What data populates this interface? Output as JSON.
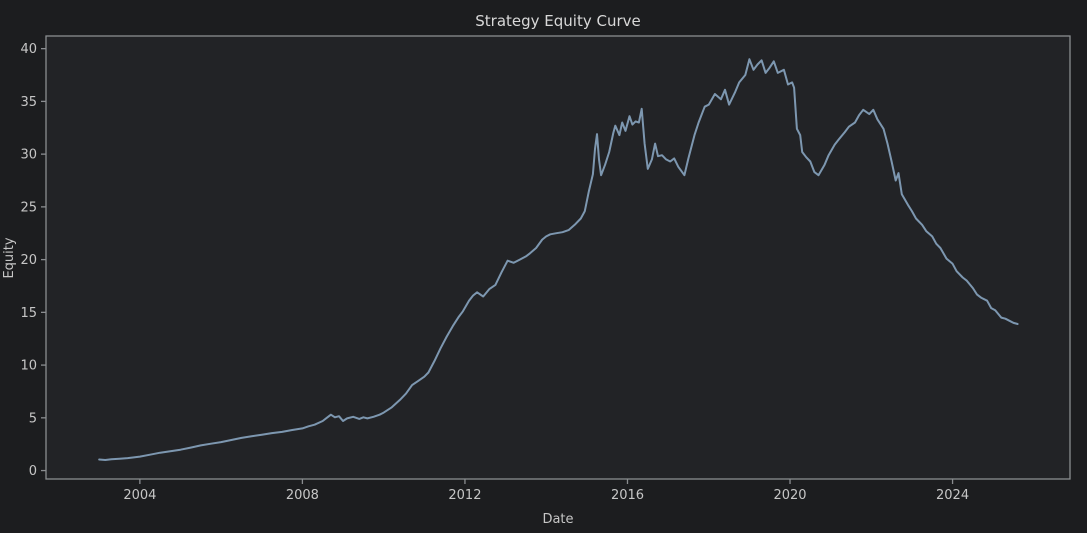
{
  "chart_data": {
    "type": "line",
    "title": "Strategy Equity Curve",
    "xlabel": "Date",
    "ylabel": "Equity",
    "grid": false,
    "legend_position": "none",
    "xlim": [
      2001.69,
      2026.89
    ],
    "ylim": [
      -0.8,
      41.2
    ],
    "x_ticks": [
      {
        "value": 2004,
        "label": "2004"
      },
      {
        "value": 2008,
        "label": "2008"
      },
      {
        "value": 2012,
        "label": "2012"
      },
      {
        "value": 2016,
        "label": "2016"
      },
      {
        "value": 2020,
        "label": "2020"
      },
      {
        "value": 2024,
        "label": "2024"
      }
    ],
    "y_ticks": [
      {
        "value": 0,
        "label": "0"
      },
      {
        "value": 5,
        "label": "5"
      },
      {
        "value": 10,
        "label": "10"
      },
      {
        "value": 15,
        "label": "15"
      },
      {
        "value": 20,
        "label": "20"
      },
      {
        "value": 25,
        "label": "25"
      },
      {
        "value": 30,
        "label": "30"
      },
      {
        "value": 35,
        "label": "35"
      },
      {
        "value": 40,
        "label": "40"
      }
    ],
    "colors": {
      "figure_background": "#1c1d1f",
      "axes_background": "#222326",
      "spine": "#8a8d90",
      "tick": "#8a8d90",
      "tick_label": "#c6c6c6",
      "title": "#d8d8d8",
      "line": "#7d97b0"
    },
    "series": [
      {
        "name": "equity",
        "color": "#7d97b0",
        "points": [
          [
            2003.0,
            1.05
          ],
          [
            2003.15,
            1.0
          ],
          [
            2003.3,
            1.08
          ],
          [
            2003.5,
            1.12
          ],
          [
            2003.7,
            1.18
          ],
          [
            2003.85,
            1.25
          ],
          [
            2004.0,
            1.32
          ],
          [
            2004.25,
            1.5
          ],
          [
            2004.5,
            1.69
          ],
          [
            2004.75,
            1.84
          ],
          [
            2005.0,
            1.98
          ],
          [
            2005.25,
            2.18
          ],
          [
            2005.5,
            2.39
          ],
          [
            2005.75,
            2.55
          ],
          [
            2006.0,
            2.7
          ],
          [
            2006.25,
            2.9
          ],
          [
            2006.5,
            3.1
          ],
          [
            2006.75,
            3.25
          ],
          [
            2007.0,
            3.4
          ],
          [
            2007.25,
            3.55
          ],
          [
            2007.5,
            3.67
          ],
          [
            2007.75,
            3.85
          ],
          [
            2008.0,
            4.0
          ],
          [
            2008.15,
            4.2
          ],
          [
            2008.3,
            4.35
          ],
          [
            2008.5,
            4.7
          ],
          [
            2008.6,
            5.0
          ],
          [
            2008.7,
            5.3
          ],
          [
            2008.8,
            5.05
          ],
          [
            2008.9,
            5.15
          ],
          [
            2009.0,
            4.7
          ],
          [
            2009.1,
            4.95
          ],
          [
            2009.25,
            5.1
          ],
          [
            2009.4,
            4.9
          ],
          [
            2009.5,
            5.05
          ],
          [
            2009.6,
            4.95
          ],
          [
            2009.75,
            5.1
          ],
          [
            2009.9,
            5.3
          ],
          [
            2010.0,
            5.5
          ],
          [
            2010.2,
            6.0
          ],
          [
            2010.4,
            6.7
          ],
          [
            2010.55,
            7.3
          ],
          [
            2010.7,
            8.1
          ],
          [
            2010.85,
            8.5
          ],
          [
            2011.0,
            8.9
          ],
          [
            2011.1,
            9.3
          ],
          [
            2011.25,
            10.4
          ],
          [
            2011.4,
            11.6
          ],
          [
            2011.55,
            12.7
          ],
          [
            2011.7,
            13.7
          ],
          [
            2011.85,
            14.6
          ],
          [
            2011.95,
            15.1
          ],
          [
            2012.1,
            16.1
          ],
          [
            2012.2,
            16.6
          ],
          [
            2012.3,
            16.9
          ],
          [
            2012.45,
            16.5
          ],
          [
            2012.6,
            17.2
          ],
          [
            2012.75,
            17.6
          ],
          [
            2012.9,
            18.8
          ],
          [
            2013.05,
            19.9
          ],
          [
            2013.2,
            19.7
          ],
          [
            2013.35,
            20.0
          ],
          [
            2013.5,
            20.3
          ],
          [
            2013.6,
            20.6
          ],
          [
            2013.75,
            21.1
          ],
          [
            2013.9,
            21.9
          ],
          [
            2014.0,
            22.2
          ],
          [
            2014.1,
            22.4
          ],
          [
            2014.25,
            22.5
          ],
          [
            2014.4,
            22.6
          ],
          [
            2014.55,
            22.8
          ],
          [
            2014.7,
            23.3
          ],
          [
            2014.85,
            23.9
          ],
          [
            2014.95,
            24.6
          ],
          [
            2015.05,
            26.5
          ],
          [
            2015.15,
            28.1
          ],
          [
            2015.2,
            30.5
          ],
          [
            2015.25,
            31.9
          ],
          [
            2015.3,
            29.5
          ],
          [
            2015.35,
            28.0
          ],
          [
            2015.45,
            29.0
          ],
          [
            2015.55,
            30.2
          ],
          [
            2015.65,
            32.0
          ],
          [
            2015.7,
            32.7
          ],
          [
            2015.8,
            31.8
          ],
          [
            2015.87,
            33.0
          ],
          [
            2015.95,
            32.2
          ],
          [
            2016.05,
            33.6
          ],
          [
            2016.12,
            32.8
          ],
          [
            2016.2,
            33.1
          ],
          [
            2016.28,
            33.0
          ],
          [
            2016.35,
            34.3
          ],
          [
            2016.42,
            31.0
          ],
          [
            2016.5,
            28.6
          ],
          [
            2016.6,
            29.5
          ],
          [
            2016.68,
            31.0
          ],
          [
            2016.75,
            29.8
          ],
          [
            2016.85,
            29.9
          ],
          [
            2016.95,
            29.5
          ],
          [
            2017.05,
            29.3
          ],
          [
            2017.15,
            29.6
          ],
          [
            2017.25,
            28.8
          ],
          [
            2017.4,
            28.0
          ],
          [
            2017.5,
            29.6
          ],
          [
            2017.65,
            31.8
          ],
          [
            2017.75,
            33.0
          ],
          [
            2017.9,
            34.5
          ],
          [
            2018.0,
            34.7
          ],
          [
            2018.15,
            35.7
          ],
          [
            2018.3,
            35.2
          ],
          [
            2018.4,
            36.1
          ],
          [
            2018.5,
            34.7
          ],
          [
            2018.65,
            35.9
          ],
          [
            2018.75,
            36.8
          ],
          [
            2018.9,
            37.5
          ],
          [
            2019.0,
            39.0
          ],
          [
            2019.1,
            38.0
          ],
          [
            2019.2,
            38.5
          ],
          [
            2019.3,
            38.9
          ],
          [
            2019.4,
            37.7
          ],
          [
            2019.5,
            38.2
          ],
          [
            2019.6,
            38.8
          ],
          [
            2019.7,
            37.7
          ],
          [
            2019.85,
            38.0
          ],
          [
            2019.95,
            36.6
          ],
          [
            2020.05,
            36.8
          ],
          [
            2020.1,
            36.3
          ],
          [
            2020.17,
            32.4
          ],
          [
            2020.25,
            31.8
          ],
          [
            2020.3,
            30.2
          ],
          [
            2020.4,
            29.7
          ],
          [
            2020.5,
            29.3
          ],
          [
            2020.6,
            28.3
          ],
          [
            2020.7,
            28.0
          ],
          [
            2020.85,
            29.0
          ],
          [
            2020.95,
            29.9
          ],
          [
            2021.1,
            30.9
          ],
          [
            2021.2,
            31.4
          ],
          [
            2021.35,
            32.1
          ],
          [
            2021.45,
            32.6
          ],
          [
            2021.6,
            33.0
          ],
          [
            2021.7,
            33.7
          ],
          [
            2021.8,
            34.2
          ],
          [
            2021.95,
            33.8
          ],
          [
            2022.05,
            34.2
          ],
          [
            2022.15,
            33.3
          ],
          [
            2022.3,
            32.4
          ],
          [
            2022.4,
            31.0
          ],
          [
            2022.5,
            29.3
          ],
          [
            2022.6,
            27.5
          ],
          [
            2022.67,
            28.2
          ],
          [
            2022.75,
            26.2
          ],
          [
            2022.9,
            25.2
          ],
          [
            2023.0,
            24.6
          ],
          [
            2023.1,
            23.9
          ],
          [
            2023.25,
            23.3
          ],
          [
            2023.35,
            22.7
          ],
          [
            2023.5,
            22.2
          ],
          [
            2023.6,
            21.5
          ],
          [
            2023.7,
            21.1
          ],
          [
            2023.85,
            20.1
          ],
          [
            2024.0,
            19.6
          ],
          [
            2024.1,
            18.9
          ],
          [
            2024.25,
            18.3
          ],
          [
            2024.35,
            18.0
          ],
          [
            2024.5,
            17.3
          ],
          [
            2024.6,
            16.7
          ],
          [
            2024.7,
            16.4
          ],
          [
            2024.85,
            16.1
          ],
          [
            2024.95,
            15.4
          ],
          [
            2025.05,
            15.2
          ],
          [
            2025.2,
            14.5
          ],
          [
            2025.3,
            14.4
          ],
          [
            2025.4,
            14.2
          ],
          [
            2025.5,
            14.0
          ],
          [
            2025.6,
            13.9
          ]
        ]
      }
    ]
  }
}
